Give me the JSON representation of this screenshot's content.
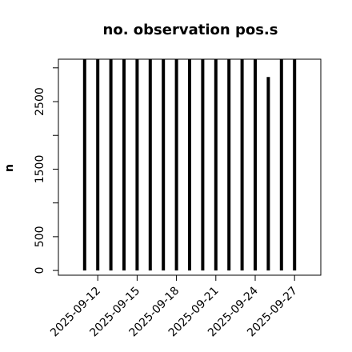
{
  "chart_data": {
    "type": "bar",
    "title": "no. observation pos.s",
    "y_label": "n",
    "x": [
      "2025-09-11",
      "2025-09-12",
      "2025-09-13",
      "2025-09-14",
      "2025-09-15",
      "2025-09-16",
      "2025-09-17",
      "2025-09-18",
      "2025-09-19",
      "2025-09-20",
      "2025-09-21",
      "2025-09-22",
      "2025-09-23",
      "2025-09-24",
      "2025-09-25",
      "2025-09-26",
      "2025-09-27"
    ],
    "values": [
      3128,
      3128,
      3128,
      3128,
      3128,
      3128,
      3128,
      3128,
      3128,
      3128,
      3128,
      3128,
      3128,
      3128,
      2865,
      3128,
      3128
    ],
    "color": "#000000",
    "xlim": [
      "2025-09-09",
      "2025-09-29"
    ],
    "xticks": [
      "2025-09-12",
      "2025-09-15",
      "2025-09-18",
      "2025-09-21",
      "2025-09-24",
      "2025-09-27"
    ],
    "xtick_colors": [
      "#000000",
      "#000000",
      "#228b22",
      "#000000",
      "#000000",
      "#000000"
    ],
    "ylim": [
      -70,
      3128
    ],
    "yticks": [
      0,
      500,
      {
        "value": 1000,
        "label": null
      },
      1500,
      {
        "value": 2000,
        "label": null
      },
      2500,
      {
        "value": 3000,
        "label": null
      }
    ]
  }
}
